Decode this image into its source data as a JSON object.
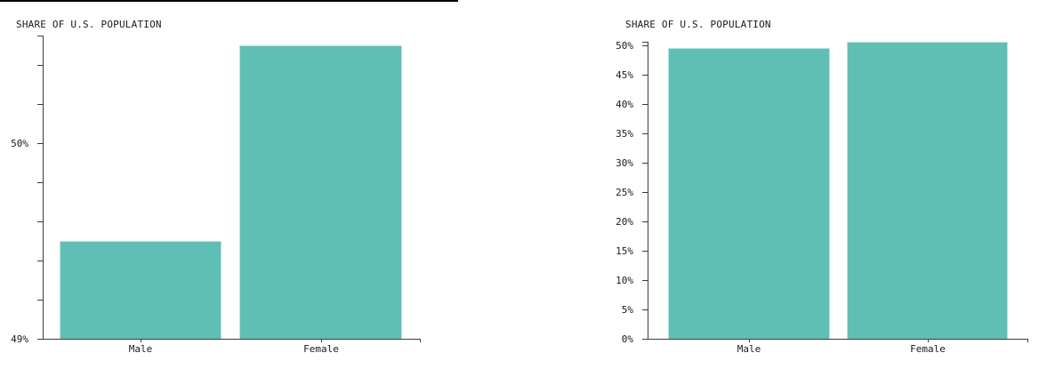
{
  "style": {
    "bar_fill": "#5fbfb5",
    "bar_stroke": "#bde2dd",
    "axis_color": "#3d3d3d",
    "text_color": "#1a1a1a",
    "top_rule_color": "#000000",
    "background": "#ffffff"
  },
  "chart_data": [
    {
      "type": "bar",
      "title": "SHARE OF U.S. POPULATION",
      "categories": [
        "Male",
        "Female"
      ],
      "values": [
        49.5,
        50.5
      ],
      "value_unit": "percent",
      "ylim": [
        49,
        50.55
      ],
      "yticks_labeled": [
        49,
        50
      ],
      "ytick_minor_step": 0.2,
      "ytick_suffix": "%",
      "grid": false,
      "legend": false,
      "axis_style": "truncated y-axis starting at 49%"
    },
    {
      "type": "bar",
      "title": "SHARE OF U.S. POPULATION",
      "categories": [
        "Male",
        "Female"
      ],
      "values": [
        49.5,
        50.5
      ],
      "value_unit": "percent",
      "ylim": [
        0,
        50.6
      ],
      "yticks_labeled": [
        0,
        5,
        10,
        15,
        20,
        25,
        30,
        35,
        40,
        45,
        50
      ],
      "ytick_minor_step": null,
      "ytick_suffix": "%",
      "grid": false,
      "legend": false,
      "axis_style": "full y-axis starting at 0%"
    }
  ]
}
